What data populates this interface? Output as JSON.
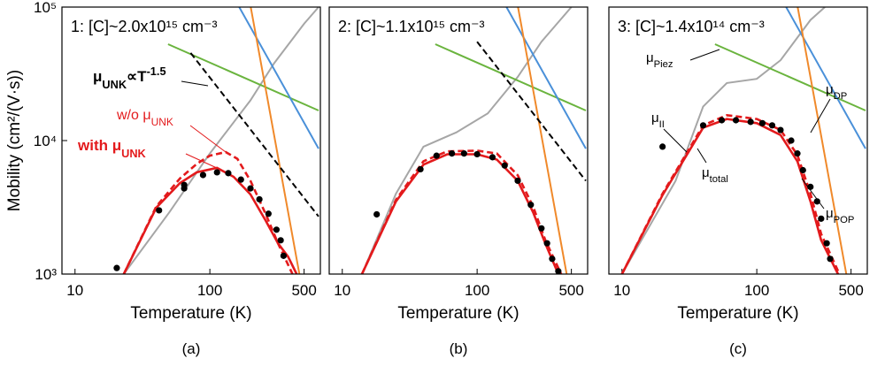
{
  "chart_data": [
    {
      "type": "line",
      "title": "1: [C]~2.0x10¹⁵ cm⁻³",
      "ylabel": "Mobility (cm²/(V·s))",
      "xlabel": "Temperature (K)",
      "caption": "(a)",
      "xlim": [
        8,
        660
      ],
      "ylim": [
        1000,
        100000
      ],
      "log_x": true,
      "log_y": true,
      "xticks": [
        10,
        100,
        500
      ],
      "yticks": [
        {
          "value": 1000,
          "label": "10³"
        },
        {
          "value": 10000,
          "label": "10⁴"
        },
        {
          "value": 100000,
          "label": "10⁵"
        }
      ],
      "series": [
        {
          "kind": "line",
          "color": "#a6a6a6",
          "x": [
            23,
            50,
            100,
            200,
            300,
            500,
            640
          ],
          "values": [
            1000,
            2900,
            8000,
            20000,
            38000,
            75000,
            100000
          ]
        },
        {
          "kind": "line",
          "color": "#6ab43e",
          "x": [
            49,
            640
          ],
          "values": [
            52700,
            16800
          ]
        },
        {
          "kind": "line",
          "color": "#4a90d9",
          "x": [
            165,
            640
          ],
          "values": [
            100000,
            8700
          ]
        },
        {
          "kind": "line",
          "color": "#f0892a",
          "x": [
            201,
            259,
            461
          ],
          "values": [
            100000,
            24600,
            1000
          ]
        },
        {
          "kind": "line",
          "color": "#000000",
          "dashed": true,
          "x": [
            72,
            640
          ],
          "values": [
            45300,
            2700
          ]
        },
        {
          "kind": "line",
          "color": "#e31a1c",
          "dashed": true,
          "x": [
            23,
            40,
            60,
            80,
            100,
            131,
            160,
            200,
            260,
            320,
            410
          ],
          "values": [
            1000,
            3200,
            5200,
            6700,
            7700,
            8200,
            7300,
            5000,
            2800,
            1700,
            1000
          ]
        },
        {
          "kind": "line",
          "color": "#e31a1c",
          "x": [
            23,
            40,
            60,
            80,
            113,
            150,
            200,
            260,
            320,
            380,
            440
          ],
          "values": [
            1000,
            3140,
            4800,
            5780,
            6240,
            5350,
            3950,
            2500,
            1700,
            1350,
            1000
          ]
        },
        {
          "kind": "scatter",
          "color": "#000000",
          "x": [
            20.4,
            42,
            64.5,
            64.5,
            89,
            113,
            137,
            170,
            200,
            233,
            272,
            312,
            335,
            352
          ],
          "values": [
            1110,
            3000,
            4380,
            4650,
            5520,
            5780,
            5700,
            5100,
            4380,
            3630,
            2830,
            2150,
            1790,
            1370
          ]
        }
      ],
      "annotations": [
        {
          "text": "μ",
          "sub": "UNK",
          "rest": "∝T",
          "sup": "-1.5"
        },
        {
          "text": "w/o μ",
          "sub": "UNK"
        },
        {
          "text": "with μ",
          "sub": "UNK"
        }
      ]
    },
    {
      "type": "line",
      "title": "2: [C]~1.1x10¹⁵ cm⁻³",
      "xlabel": "Temperature (K)",
      "caption": "(b)",
      "xlim": [
        8,
        660
      ],
      "ylim": [
        1000,
        100000
      ],
      "log_x": true,
      "log_y": true,
      "xticks": [
        10,
        100,
        500
      ],
      "series": [
        {
          "kind": "line",
          "color": "#a6a6a6",
          "x": [
            14,
            25,
            40,
            70,
            120,
            200,
            300,
            500
          ],
          "values": [
            1000,
            4000,
            9000,
            11500,
            16000,
            30000,
            55000,
            100000
          ]
        },
        {
          "kind": "line",
          "color": "#6ab43e",
          "x": [
            49,
            640
          ],
          "values": [
            52700,
            16800
          ]
        },
        {
          "kind": "line",
          "color": "#4a90d9",
          "x": [
            165,
            640
          ],
          "values": [
            100000,
            8700
          ]
        },
        {
          "kind": "line",
          "color": "#f0892a",
          "x": [
            201,
            259,
            461
          ],
          "values": [
            100000,
            24600,
            1000
          ]
        },
        {
          "kind": "line",
          "color": "#000000",
          "dashed": true,
          "x": [
            100,
            640
          ],
          "values": [
            55000,
            5000
          ]
        },
        {
          "kind": "line",
          "color": "#e31a1c",
          "dashed": true,
          "x": [
            14,
            25,
            40,
            60,
            100,
            140,
            200,
            260,
            320,
            420
          ],
          "values": [
            1000,
            3600,
            7000,
            8300,
            8400,
            8000,
            5500,
            3200,
            1800,
            1000
          ]
        },
        {
          "kind": "line",
          "color": "#e31a1c",
          "x": [
            14,
            25,
            40,
            60,
            100,
            140,
            200,
            260,
            320,
            400
          ],
          "values": [
            1000,
            3500,
            6600,
            7900,
            7900,
            7200,
            5000,
            2900,
            1700,
            1000
          ]
        },
        {
          "kind": "scatter",
          "color": "#000000",
          "x": [
            18,
            38,
            50,
            65,
            80,
            100,
            130,
            160,
            200,
            250,
            300,
            330,
            360,
            400
          ],
          "values": [
            2800,
            6100,
            7700,
            8000,
            8000,
            7900,
            7500,
            6500,
            5000,
            3300,
            2200,
            1700,
            1300,
            1050
          ]
        }
      ]
    },
    {
      "type": "line",
      "title": "3: [C]~1.4x10¹⁴ cm⁻³",
      "xlabel": "Temperature (K)",
      "caption": "(c)",
      "xlim": [
        8,
        660
      ],
      "ylim": [
        1000,
        100000
      ],
      "log_x": true,
      "log_y": true,
      "xticks": [
        10,
        100,
        500
      ],
      "series": [
        {
          "kind": "line",
          "color": "#a6a6a6",
          "x": [
            10,
            25,
            40,
            60,
            100,
            150,
            250,
            320
          ],
          "values": [
            1000,
            5000,
            18000,
            27000,
            29000,
            40000,
            80000,
            100000
          ]
        },
        {
          "kind": "line",
          "color": "#6ab43e",
          "x": [
            49,
            640
          ],
          "values": [
            52700,
            16800
          ]
        },
        {
          "kind": "line",
          "color": "#4a90d9",
          "x": [
            165,
            640
          ],
          "values": [
            100000,
            8700
          ]
        },
        {
          "kind": "line",
          "color": "#f0892a",
          "x": [
            201,
            259,
            461
          ],
          "values": [
            100000,
            24600,
            1000
          ]
        },
        {
          "kind": "line",
          "color": "#e31a1c",
          "dashed": true,
          "x": [
            10,
            20,
            40,
            60,
            100,
            150,
            200,
            250,
            300,
            410
          ],
          "values": [
            1000,
            4000,
            13000,
            15500,
            14500,
            12000,
            7800,
            4000,
            2000,
            1000
          ]
        },
        {
          "kind": "line",
          "color": "#e31a1c",
          "x": [
            10,
            20,
            40,
            60,
            100,
            150,
            200,
            250,
            300,
            400
          ],
          "values": [
            1000,
            3900,
            12500,
            14500,
            13500,
            11000,
            7000,
            3500,
            1800,
            1000
          ]
        },
        {
          "kind": "scatter",
          "color": "#000000",
          "x": [
            20,
            40,
            55,
            70,
            90,
            110,
            130,
            150,
            180,
            200,
            220,
            250,
            280,
            300,
            330,
            350
          ],
          "values": [
            9000,
            13000,
            14200,
            14200,
            13800,
            13500,
            13000,
            12000,
            10000,
            8000,
            6000,
            4500,
            3500,
            2600,
            1700,
            1300
          ]
        }
      ],
      "annotations": [
        {
          "text": "μ",
          "sub": "Piez"
        },
        {
          "text": "μ",
          "sub": "DP"
        },
        {
          "text": "μ",
          "sub": "II"
        },
        {
          "text": "μ",
          "sub": "total"
        },
        {
          "text": "μ",
          "sub": "POP"
        }
      ]
    }
  ]
}
